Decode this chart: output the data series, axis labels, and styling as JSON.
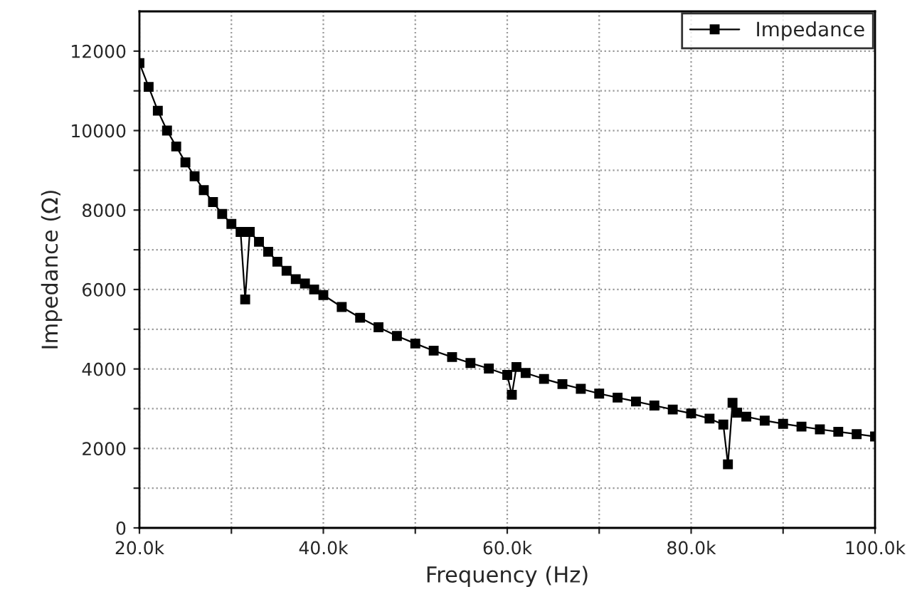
{
  "chart_data": {
    "type": "line",
    "xlabel": "Frequency (Hz)",
    "ylabel": "Impedance (Ω)",
    "x": [
      20000,
      21000,
      22000,
      23000,
      24000,
      25000,
      26000,
      27000,
      28000,
      29000,
      30000,
      31000,
      31500,
      32000,
      33000,
      34000,
      35000,
      36000,
      37000,
      38000,
      39000,
      40000,
      42000,
      44000,
      46000,
      48000,
      50000,
      52000,
      54000,
      56000,
      58000,
      60000,
      60500,
      61000,
      62000,
      64000,
      66000,
      68000,
      70000,
      72000,
      74000,
      76000,
      78000,
      80000,
      82000,
      83500,
      84000,
      84500,
      85000,
      86000,
      88000,
      90000,
      92000,
      94000,
      96000,
      98000,
      100000
    ],
    "series": [
      {
        "name": "Impedance",
        "color": "#000000",
        "values": [
          11700,
          11100,
          10500,
          10000,
          9600,
          9200,
          8850,
          8500,
          8200,
          7900,
          7650,
          7450,
          5750,
          7450,
          7200,
          6950,
          6700,
          6470,
          6260,
          6150,
          6000,
          5860,
          5560,
          5290,
          5050,
          4830,
          4640,
          4460,
          4300,
          4150,
          4010,
          3850,
          3350,
          4050,
          3900,
          3750,
          3620,
          3500,
          3380,
          3280,
          3180,
          3080,
          2980,
          2880,
          2750,
          2600,
          1600,
          3150,
          2900,
          2800,
          2700,
          2620,
          2550,
          2480,
          2420,
          2360,
          2300
        ]
      }
    ],
    "xlim": [
      20000,
      100000
    ],
    "ylim": [
      0,
      13000
    ],
    "xticks": [
      {
        "value": 20000,
        "label": "20.0k"
      },
      {
        "value": 30000,
        "label": null
      },
      {
        "value": 40000,
        "label": "40.0k"
      },
      {
        "value": 50000,
        "label": null
      },
      {
        "value": 60000,
        "label": "60.0k"
      },
      {
        "value": 70000,
        "label": null
      },
      {
        "value": 80000,
        "label": "80.0k"
      },
      {
        "value": 90000,
        "label": null
      },
      {
        "value": 100000,
        "label": "100.0k"
      }
    ],
    "yticks": [
      0,
      {
        "value": 1000,
        "label": null
      },
      2000,
      {
        "value": 3000,
        "label": null
      },
      4000,
      {
        "value": 5000,
        "label": null
      },
      6000,
      {
        "value": 7000,
        "label": null
      },
      8000,
      {
        "value": 9000,
        "label": null
      },
      10000,
      {
        "value": 11000,
        "label": null
      },
      12000
    ],
    "grid": true,
    "legend": "top right",
    "marker": "square",
    "line_style": "solid"
  }
}
